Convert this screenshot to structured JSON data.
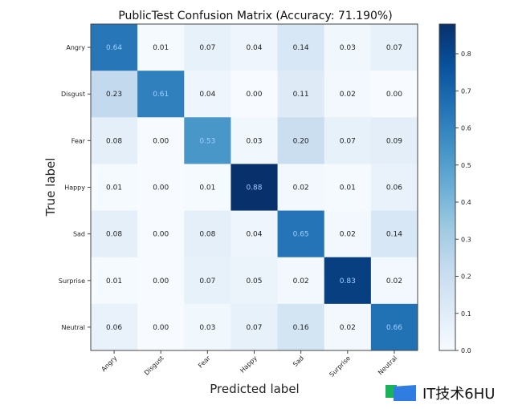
{
  "chart_data": {
    "type": "heatmap",
    "title": "PublicTest Confusion Matrix (Accuracy: 71.190%)",
    "xlabel": "Predicted label",
    "ylabel": "True label",
    "x_categories": [
      "Angry",
      "Disgust",
      "Fear",
      "Happy",
      "Sad",
      "Surprise",
      "Neutral"
    ],
    "y_categories": [
      "Angry",
      "Disgust",
      "Fear",
      "Happy",
      "Sad",
      "Surprise",
      "Neutral"
    ],
    "values": [
      [
        0.64,
        0.01,
        0.07,
        0.04,
        0.14,
        0.03,
        0.07
      ],
      [
        0.23,
        0.61,
        0.04,
        0.0,
        0.11,
        0.02,
        0.0
      ],
      [
        0.08,
        0.0,
        0.53,
        0.03,
        0.2,
        0.07,
        0.09
      ],
      [
        0.01,
        0.0,
        0.01,
        0.88,
        0.02,
        0.01,
        0.06
      ],
      [
        0.08,
        0.0,
        0.08,
        0.04,
        0.65,
        0.02,
        0.14
      ],
      [
        0.01,
        0.0,
        0.07,
        0.05,
        0.02,
        0.83,
        0.02
      ],
      [
        0.06,
        0.0,
        0.03,
        0.07,
        0.16,
        0.02,
        0.66
      ]
    ],
    "colormap": "Blues",
    "colorbar": {
      "range": [
        0,
        0.88
      ],
      "ticks": [
        "0.0",
        "0.1",
        "0.2",
        "0.3",
        "0.4",
        "0.5",
        "0.6",
        "0.7",
        "0.8"
      ]
    }
  },
  "watermark": {
    "text": "IT技术6HU",
    "logo_colors": [
      "#19b35a",
      "#2f7de1"
    ]
  }
}
